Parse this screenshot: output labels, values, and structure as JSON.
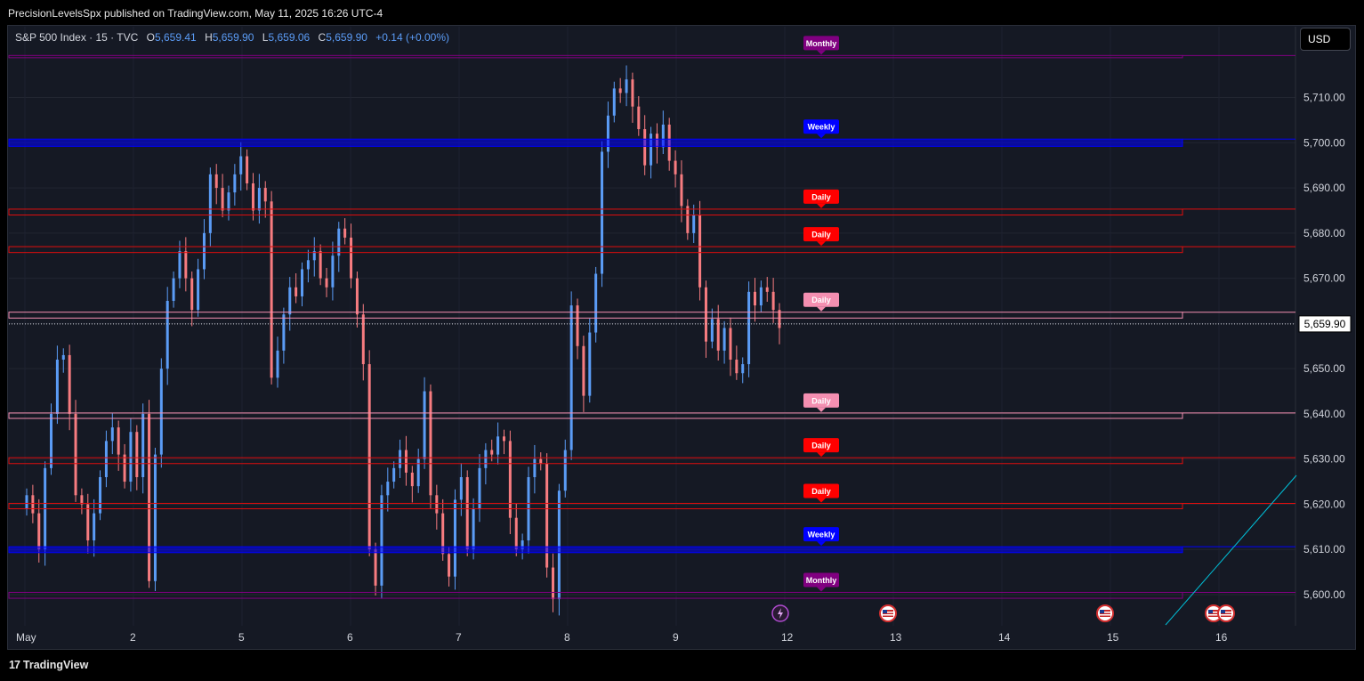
{
  "header": {
    "published": "PrecisionLevelsSpx published on TradingView.com, May 11, 2025 16:26 UTC-4"
  },
  "legend": {
    "symbol": "S&P 500 Index · 15 · TVC",
    "o_label": "O",
    "o": "5,659.41",
    "h_label": "H",
    "h": "5,659.90",
    "l_label": "L",
    "l": "5,659.06",
    "c_label": "C",
    "c": "5,659.90",
    "change": "+0.14 (+0.00%)"
  },
  "currency": "USD",
  "footer": {
    "brand": "TradingView",
    "logo": "17"
  },
  "colors": {
    "background": "#151924",
    "up": "#5b9cf6",
    "down": "#f77c80",
    "daily_red": "#e00d0d",
    "daily_pink": "#f48fb1",
    "weekly": "#0000ff",
    "monthly": "#800080",
    "trendline": "#00bcd4"
  },
  "chart_data": {
    "type": "candlestick",
    "title": "S&P 500 Index · 15 · TVC",
    "ylim": [
      5594,
      5724
    ],
    "y_ticks": [
      "5,600.00",
      "5,610.00",
      "5,620.00",
      "5,630.00",
      "5,640.00",
      "5,650.00",
      "5,660.00",
      "5,670.00",
      "5,680.00",
      "5,690.00",
      "5,700.00",
      "5,710.00"
    ],
    "y_tick_values": [
      5600,
      5610,
      5620,
      5630,
      5640,
      5650,
      5660,
      5670,
      5680,
      5690,
      5700,
      5710
    ],
    "x_ticks": [
      "May",
      "2",
      "5",
      "6",
      "7",
      "8",
      "9",
      "12",
      "13",
      "14",
      "15",
      "16"
    ],
    "last_price": 5659.9,
    "last_price_label": "5,659.90",
    "levels": [
      {
        "label": "Monthly",
        "value": 5719.3,
        "value2": 5718.8,
        "kind": "monthly"
      },
      {
        "label": "Weekly",
        "value": 5700.8,
        "value2": 5699.2,
        "kind": "weekly"
      },
      {
        "label": "Daily",
        "value": 5685.3,
        "value2": 5684.0,
        "kind": "daily_red"
      },
      {
        "label": "Daily",
        "value": 5677.0,
        "value2": 5675.7,
        "kind": "daily_red"
      },
      {
        "label": "Daily",
        "value": 5662.5,
        "value2": 5661.2,
        "kind": "daily_pink"
      },
      {
        "label": "Daily",
        "value": 5640.2,
        "value2": 5639.0,
        "kind": "daily_pink"
      },
      {
        "label": "Daily",
        "value": 5630.3,
        "value2": 5629.0,
        "kind": "daily_red"
      },
      {
        "label": "Daily",
        "value": 5620.2,
        "value2": 5619.0,
        "kind": "daily_red"
      },
      {
        "label": "Weekly",
        "value": 5610.6,
        "value2": 5609.3,
        "kind": "weekly"
      },
      {
        "label": "Monthly",
        "value": 5600.5,
        "value2": 5599.2,
        "kind": "monthly"
      }
    ],
    "series_close": [
      5622,
      5618,
      5610,
      5628,
      5640,
      5652,
      5653,
      5640,
      5622,
      5620,
      5612,
      5618,
      5626,
      5634,
      5637,
      5631,
      5625,
      5636,
      5626,
      5640,
      5603,
      5631,
      5650,
      5665,
      5670,
      5676,
      5670,
      5663,
      5672,
      5680,
      5693,
      5690,
      5685,
      5689,
      5693,
      5697,
      5691,
      5685,
      5690,
      5687,
      5648,
      5654,
      5662,
      5668,
      5666,
      5672,
      5674,
      5676,
      5670,
      5668,
      5675,
      5681,
      5679,
      5670,
      5662,
      5651,
      5610,
      5602,
      5622,
      5625,
      5628,
      5632,
      5627,
      5624,
      5630,
      5645,
      5622,
      5618,
      5609,
      5604,
      5621,
      5626,
      5610,
      5619,
      5628,
      5632,
      5631,
      5635,
      5634,
      5617,
      5610,
      5612,
      5626,
      5630,
      5629,
      5606,
      5599,
      5623,
      5632,
      5664,
      5655,
      5644,
      5658,
      5671,
      5698,
      5706,
      5712,
      5711,
      5714,
      5708,
      5703,
      5695,
      5702,
      5699,
      5704,
      5696,
      5693,
      5686,
      5680,
      5684,
      5668,
      5656,
      5661,
      5654,
      5659,
      5652,
      5649,
      5651,
      5667,
      5664,
      5668,
      5667,
      5663,
      5659
    ]
  },
  "event_icons": [
    "lightning-icon",
    "us-flag-icon",
    "us-flag-icon",
    "us-flag-icon",
    "us-flag-icon"
  ]
}
